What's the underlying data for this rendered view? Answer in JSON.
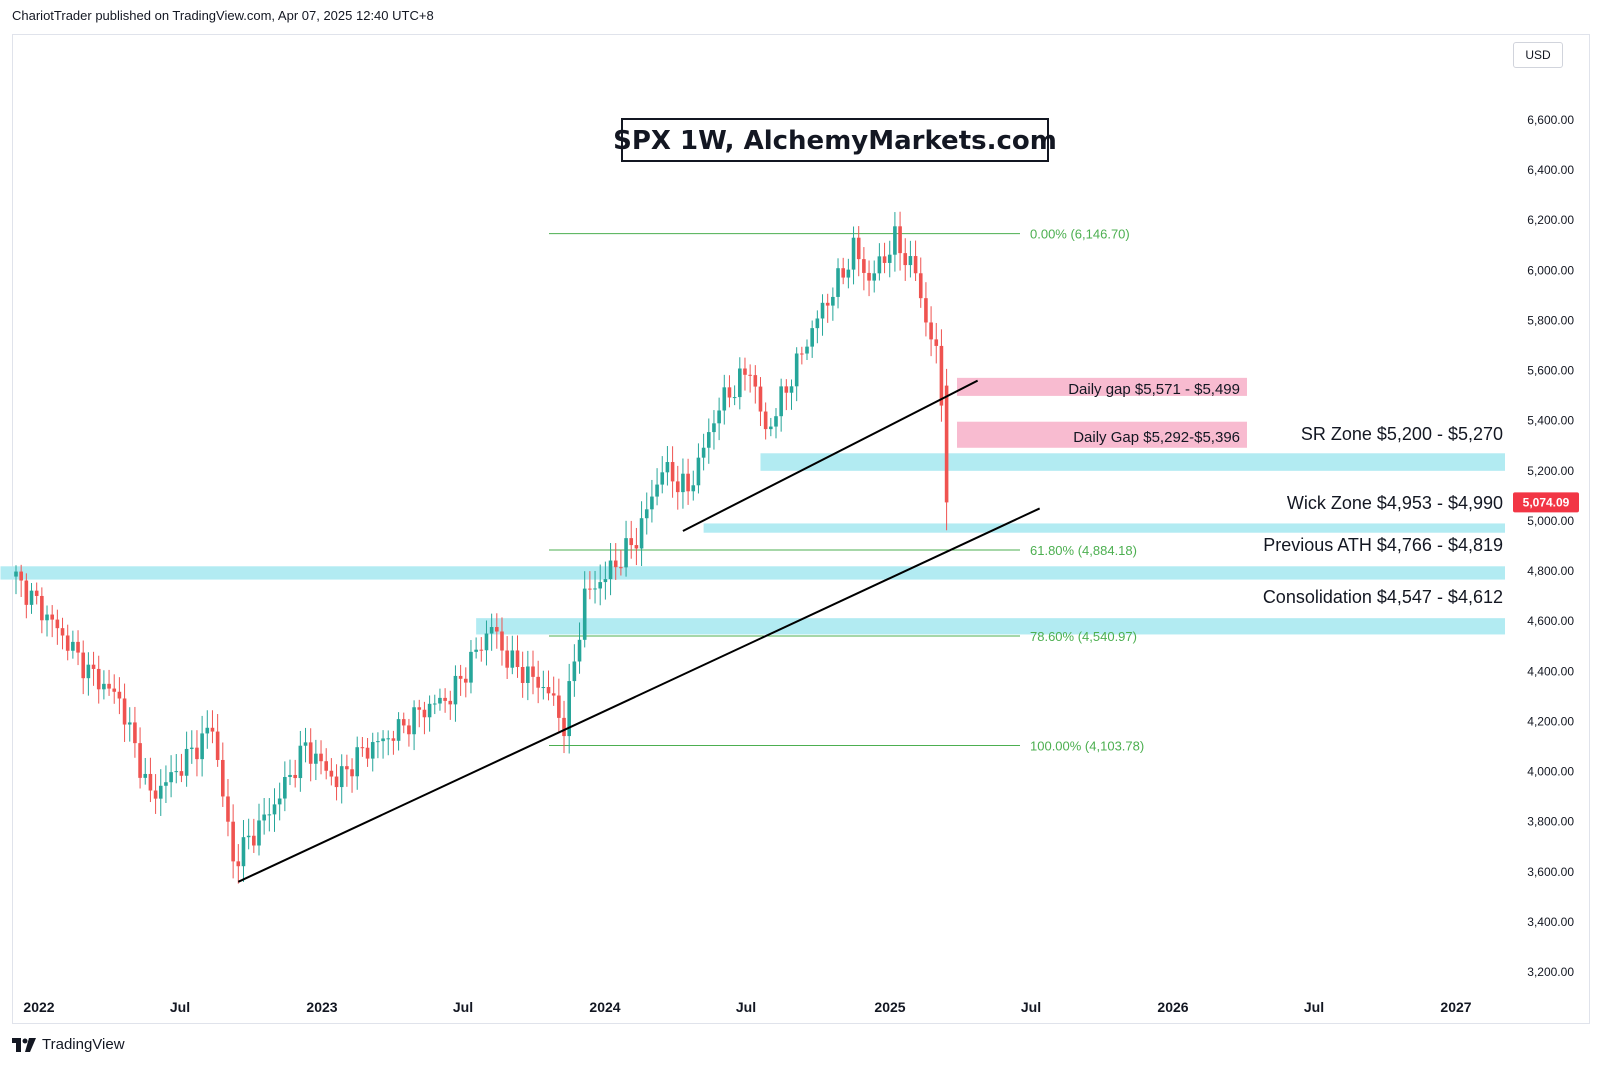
{
  "header": {
    "text": "ChariotTrader published on TradingView.com, Apr 07, 2025 12:40 UTC+8"
  },
  "currency": "USD",
  "footer": {
    "brand": "TradingView",
    "logo_icon": "tradingview-logo-icon"
  },
  "colors": {
    "up": "#26a69a",
    "down": "#ef5350",
    "zone_blue": "#b2ebf2",
    "zone_red": "#f8bbd0",
    "fib": "#4caf50",
    "price_tag": "#f23645"
  },
  "chart_data": {
    "type": "candlestick",
    "title": "SPX 1W, AlchemyMarkets.com",
    "ylim": [
      3080,
      6760
    ],
    "y_ticks": [
      "6,600.00",
      "6,400.00",
      "6,200.00",
      "6,000.00",
      "5,800.00",
      "5,600.00",
      "5,400.00",
      "5,200.00",
      "5,000.00",
      "4,800.00",
      "4,600.00",
      "4,400.00",
      "4,200.00",
      "4,000.00",
      "3,800.00",
      "3,600.00",
      "3,400.00",
      "3,200.00"
    ],
    "x_ticks": [
      "2022",
      "Jul",
      "2023",
      "Jul",
      "2024",
      "Jul",
      "2025",
      "Jul",
      "2026",
      "Jul",
      "2027"
    ],
    "last_price": "5,074.09",
    "anchors": [
      [
        0,
        4770
      ],
      [
        8,
        4570
      ],
      [
        14,
        4400
      ],
      [
        20,
        4290
      ],
      [
        26,
        3900
      ],
      [
        31,
        4000
      ],
      [
        38,
        4180
      ],
      [
        42,
        3640
      ],
      [
        50,
        3870
      ],
      [
        56,
        4100
      ],
      [
        62,
        3960
      ],
      [
        67,
        4080
      ],
      [
        73,
        4150
      ],
      [
        79,
        4250
      ],
      [
        84,
        4300
      ],
      [
        92,
        4580
      ],
      [
        95,
        4450
      ],
      [
        103,
        4320
      ],
      [
        106,
        4180
      ],
      [
        110,
        4700
      ],
      [
        114,
        4780
      ],
      [
        120,
        4930
      ],
      [
        125,
        5210
      ],
      [
        130,
        5120
      ],
      [
        136,
        5460
      ],
      [
        142,
        5610
      ],
      [
        145,
        5350
      ],
      [
        149,
        5530
      ],
      [
        155,
        5810
      ],
      [
        160,
        5990
      ],
      [
        162,
        6090
      ],
      [
        165,
        5960
      ],
      [
        170,
        6120
      ],
      [
        174,
        5990
      ],
      [
        176,
        5800
      ],
      [
        178,
        5660
      ],
      [
        179,
        5490
      ],
      [
        180,
        5074
      ]
    ],
    "fibonacci": [
      {
        "level": "0.00%",
        "value": 6146.7,
        "label": "0.00% (6,146.70)"
      },
      {
        "level": "61.80%",
        "value": 4884.18,
        "label": "61.80% (4,884.18)"
      },
      {
        "level": "78.60%",
        "value": 4540.97,
        "label": "78.60% (4,540.97)"
      },
      {
        "level": "100.00%",
        "value": 4103.78,
        "label": "100.00% (4,103.78)"
      }
    ],
    "zones": [
      {
        "label": "SR Zone $5,200 - $5,270",
        "low": 5200,
        "high": 5270,
        "color": "#b2ebf2"
      },
      {
        "label": "Wick Zone $4,953 - $4,990",
        "low": 4953,
        "high": 4990,
        "color": "#b2ebf2"
      },
      {
        "label": "Previous ATH $4,766 - $4,819",
        "low": 4766,
        "high": 4819,
        "color": "#b2ebf2"
      },
      {
        "label": "Consolidation $4,547 - $4,612",
        "low": 4547,
        "high": 4612,
        "color": "#b2ebf2"
      }
    ],
    "gaps": [
      {
        "label": "Daily gap $5,571 - $5,499",
        "low": 5499,
        "high": 5571,
        "color": "#f8bbd0"
      },
      {
        "label": "Daily Gap $5,292-$5,396",
        "low": 5292,
        "high": 5396,
        "color": "#f8bbd0"
      }
    ],
    "trendlines": [
      {
        "name": "long-trendline",
        "from": [
          43,
          3560
        ],
        "to": [
          198,
          5050
        ]
      },
      {
        "name": "short-trendline",
        "from": [
          129,
          4960
        ],
        "to": [
          186,
          5560
        ]
      }
    ]
  }
}
